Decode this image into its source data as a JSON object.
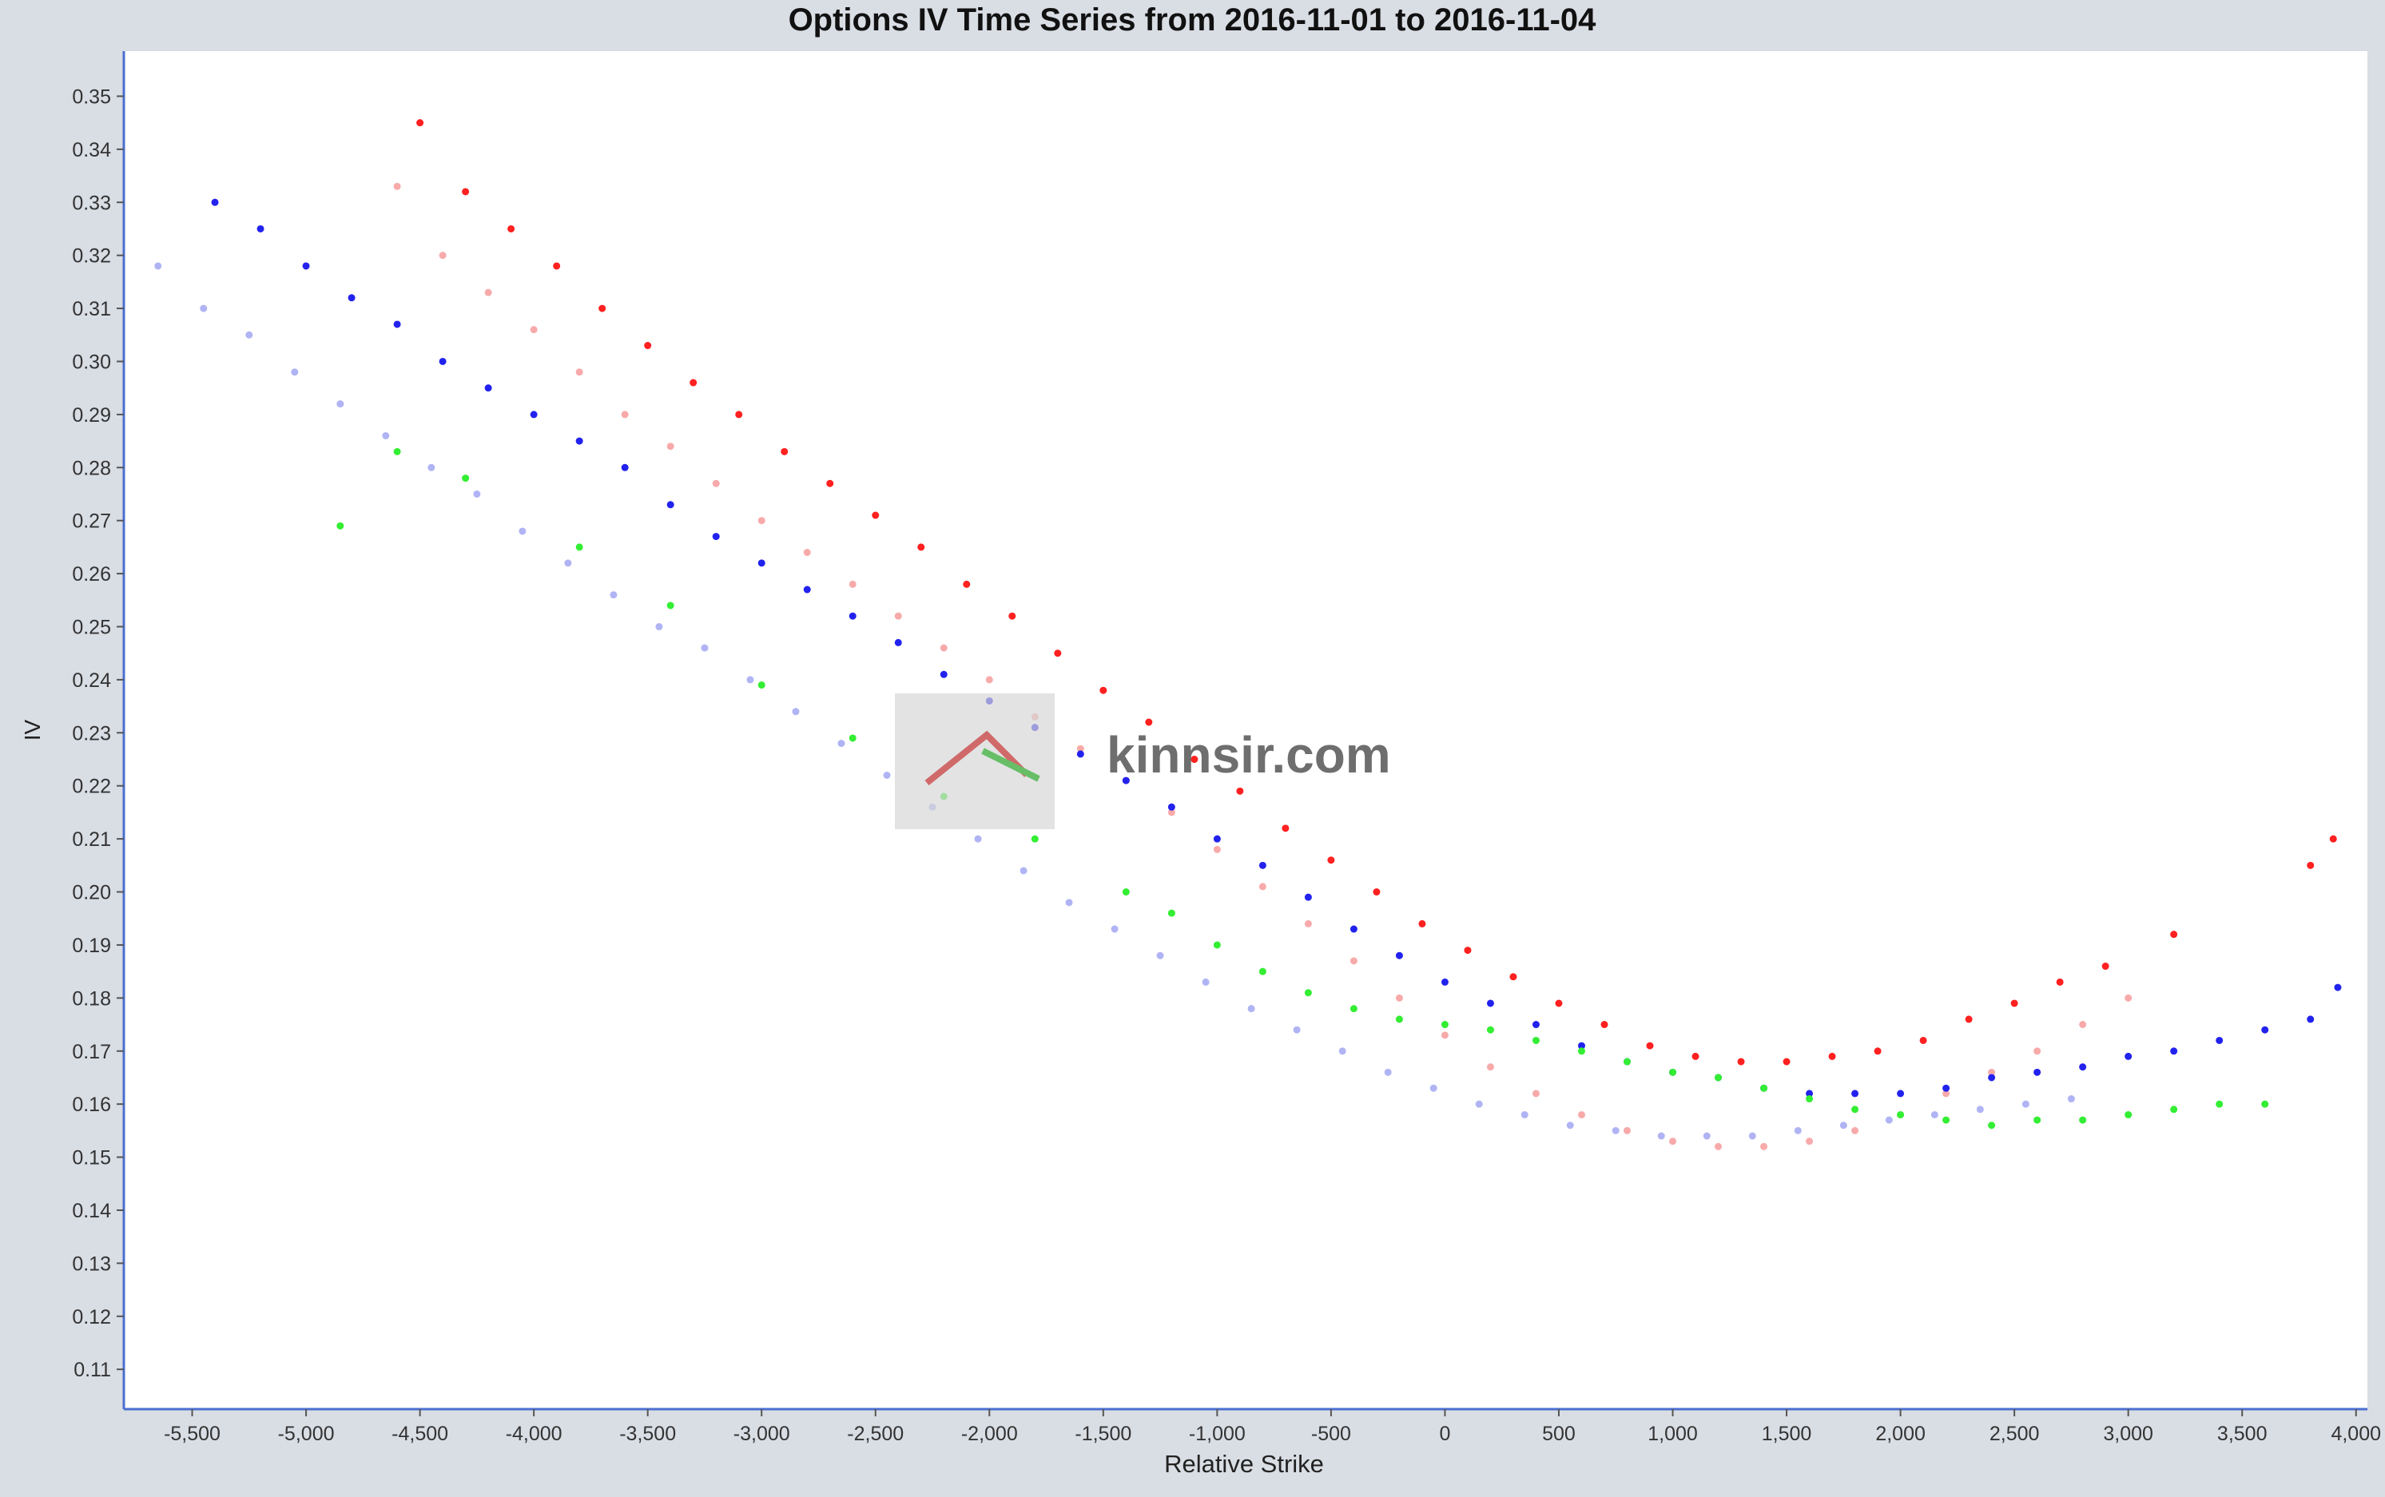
{
  "chart_data": {
    "type": "scatter",
    "title": "Options IV Time Series from 2016-11-01 to 2016-11-04",
    "xlabel": "Relative Strike",
    "ylabel": "IV",
    "xlim": [
      -5800,
      4050
    ],
    "ylim": [
      0.1025,
      0.3585
    ],
    "x_ticks": [
      -5500,
      -5000,
      -4500,
      -4000,
      -3500,
      -3000,
      -2500,
      -2000,
      -1500,
      -1000,
      -500,
      0,
      500,
      1000,
      1500,
      2000,
      2500,
      3000,
      3500,
      4000
    ],
    "x_tick_labels": [
      "-5,500",
      "-5,000",
      "-4,500",
      "-4,000",
      "-3,500",
      "-3,000",
      "-2,500",
      "-2,000",
      "-1,500",
      "-1,000",
      "-500",
      "0",
      "500",
      "1,000",
      "1,500",
      "2,000",
      "2,500",
      "3,000",
      "3,500",
      "4,000"
    ],
    "y_ticks": [
      0.11,
      0.12,
      0.13,
      0.14,
      0.15,
      0.16,
      0.17,
      0.18,
      0.19,
      0.2,
      0.21,
      0.22,
      0.23,
      0.24,
      0.25,
      0.26,
      0.27,
      0.28,
      0.29,
      0.3,
      0.31,
      0.32,
      0.33,
      0.34,
      0.35
    ],
    "y_tick_labels": [
      "0.11",
      "0.12",
      "0.13",
      "0.14",
      "0.15",
      "0.16",
      "0.17",
      "0.18",
      "0.19",
      "0.20",
      "0.21",
      "0.22",
      "0.23",
      "0.24",
      "0.25",
      "0.26",
      "0.27",
      "0.28",
      "0.29",
      "0.30",
      "0.31",
      "0.32",
      "0.33",
      "0.34",
      "0.35"
    ],
    "grid": false,
    "legend": "none",
    "watermark": "kinnsir.com",
    "series": [
      {
        "color": "#ff2020",
        "points": [
          [
            -4500,
            0.345
          ],
          [
            -4300,
            0.332
          ],
          [
            -4100,
            0.325
          ],
          [
            -3900,
            0.318
          ],
          [
            -3700,
            0.31
          ],
          [
            -3500,
            0.303
          ],
          [
            -3300,
            0.296
          ],
          [
            -3100,
            0.29
          ],
          [
            -2900,
            0.283
          ],
          [
            -2700,
            0.277
          ],
          [
            -2500,
            0.271
          ],
          [
            -2300,
            0.265
          ],
          [
            -2100,
            0.258
          ],
          [
            -1900,
            0.252
          ],
          [
            -1700,
            0.245
          ],
          [
            -1500,
            0.238
          ],
          [
            -1300,
            0.232
          ],
          [
            -1100,
            0.225
          ],
          [
            -900,
            0.219
          ],
          [
            -700,
            0.212
          ],
          [
            -500,
            0.206
          ],
          [
            -300,
            0.2
          ],
          [
            -100,
            0.194
          ],
          [
            100,
            0.189
          ],
          [
            300,
            0.184
          ],
          [
            500,
            0.179
          ],
          [
            700,
            0.175
          ],
          [
            900,
            0.171
          ],
          [
            1100,
            0.169
          ],
          [
            1300,
            0.168
          ],
          [
            1500,
            0.168
          ],
          [
            1700,
            0.169
          ],
          [
            1900,
            0.17
          ],
          [
            2100,
            0.172
          ],
          [
            2300,
            0.176
          ],
          [
            2500,
            0.179
          ],
          [
            2700,
            0.183
          ],
          [
            2900,
            0.186
          ],
          [
            3200,
            0.192
          ],
          [
            3800,
            0.205
          ],
          [
            3900,
            0.21
          ]
        ]
      },
      {
        "color": "#f8aaaa",
        "points": [
          [
            -4600,
            0.333
          ],
          [
            -4400,
            0.32
          ],
          [
            -4200,
            0.313
          ],
          [
            -4000,
            0.306
          ],
          [
            -3800,
            0.298
          ],
          [
            -3600,
            0.29
          ],
          [
            -3400,
            0.284
          ],
          [
            -3200,
            0.277
          ],
          [
            -3000,
            0.27
          ],
          [
            -2800,
            0.264
          ],
          [
            -2600,
            0.258
          ],
          [
            -2400,
            0.252
          ],
          [
            -2200,
            0.246
          ],
          [
            -2000,
            0.24
          ],
          [
            -1800,
            0.233
          ],
          [
            -1600,
            0.227
          ],
          [
            -1400,
            0.221
          ],
          [
            -1200,
            0.215
          ],
          [
            -1000,
            0.208
          ],
          [
            -800,
            0.201
          ],
          [
            -600,
            0.194
          ],
          [
            -400,
            0.187
          ],
          [
            -200,
            0.18
          ],
          [
            0,
            0.173
          ],
          [
            200,
            0.167
          ],
          [
            400,
            0.162
          ],
          [
            600,
            0.158
          ],
          [
            800,
            0.155
          ],
          [
            1000,
            0.153
          ],
          [
            1200,
            0.152
          ],
          [
            1400,
            0.152
          ],
          [
            1600,
            0.153
          ],
          [
            1800,
            0.155
          ],
          [
            2000,
            0.158
          ],
          [
            2200,
            0.162
          ],
          [
            2400,
            0.166
          ],
          [
            2600,
            0.17
          ],
          [
            2800,
            0.175
          ],
          [
            3000,
            0.18
          ]
        ]
      },
      {
        "color": "#2222ee",
        "points": [
          [
            -5400,
            0.33
          ],
          [
            -5200,
            0.325
          ],
          [
            -5000,
            0.318
          ],
          [
            -4800,
            0.312
          ],
          [
            -4600,
            0.307
          ],
          [
            -4400,
            0.3
          ],
          [
            -4200,
            0.295
          ],
          [
            -4000,
            0.29
          ],
          [
            -3800,
            0.285
          ],
          [
            -3600,
            0.28
          ],
          [
            -3400,
            0.273
          ],
          [
            -3200,
            0.267
          ],
          [
            -3000,
            0.262
          ],
          [
            -2800,
            0.257
          ],
          [
            -2600,
            0.252
          ],
          [
            -2400,
            0.247
          ],
          [
            -2200,
            0.241
          ],
          [
            -2000,
            0.236
          ],
          [
            -1800,
            0.231
          ],
          [
            -1600,
            0.226
          ],
          [
            -1400,
            0.221
          ],
          [
            -1200,
            0.216
          ],
          [
            -1000,
            0.21
          ],
          [
            -800,
            0.205
          ],
          [
            -600,
            0.199
          ],
          [
            -400,
            0.193
          ],
          [
            -200,
            0.188
          ],
          [
            0,
            0.183
          ],
          [
            200,
            0.179
          ],
          [
            400,
            0.175
          ],
          [
            600,
            0.171
          ],
          [
            800,
            0.168
          ],
          [
            1000,
            0.166
          ],
          [
            1200,
            0.165
          ],
          [
            1400,
            0.163
          ],
          [
            1600,
            0.162
          ],
          [
            1800,
            0.162
          ],
          [
            2000,
            0.162
          ],
          [
            2200,
            0.163
          ],
          [
            2400,
            0.165
          ],
          [
            2600,
            0.166
          ],
          [
            2800,
            0.167
          ],
          [
            3000,
            0.169
          ],
          [
            3200,
            0.17
          ],
          [
            3400,
            0.172
          ],
          [
            3600,
            0.174
          ],
          [
            3800,
            0.176
          ],
          [
            3920,
            0.182
          ]
        ]
      },
      {
        "color": "#b0b4f4",
        "points": [
          [
            -5650,
            0.318
          ],
          [
            -5450,
            0.31
          ],
          [
            -5250,
            0.305
          ],
          [
            -5050,
            0.298
          ],
          [
            -4850,
            0.292
          ],
          [
            -4650,
            0.286
          ],
          [
            -4450,
            0.28
          ],
          [
            -4250,
            0.275
          ],
          [
            -4050,
            0.268
          ],
          [
            -3850,
            0.262
          ],
          [
            -3650,
            0.256
          ],
          [
            -3450,
            0.25
          ],
          [
            -3250,
            0.246
          ],
          [
            -3050,
            0.24
          ],
          [
            -2850,
            0.234
          ],
          [
            -2650,
            0.228
          ],
          [
            -2450,
            0.222
          ],
          [
            -2250,
            0.216
          ],
          [
            -2050,
            0.21
          ],
          [
            -1850,
            0.204
          ],
          [
            -1650,
            0.198
          ],
          [
            -1450,
            0.193
          ],
          [
            -1250,
            0.188
          ],
          [
            -1050,
            0.183
          ],
          [
            -850,
            0.178
          ],
          [
            -650,
            0.174
          ],
          [
            -450,
            0.17
          ],
          [
            -250,
            0.166
          ],
          [
            -50,
            0.163
          ],
          [
            150,
            0.16
          ],
          [
            350,
            0.158
          ],
          [
            550,
            0.156
          ],
          [
            750,
            0.155
          ],
          [
            950,
            0.154
          ],
          [
            1150,
            0.154
          ],
          [
            1350,
            0.154
          ],
          [
            1550,
            0.155
          ],
          [
            1750,
            0.156
          ],
          [
            1950,
            0.157
          ],
          [
            2150,
            0.158
          ],
          [
            2350,
            0.159
          ],
          [
            2550,
            0.16
          ],
          [
            2750,
            0.161
          ]
        ]
      },
      {
        "color": "#33ee33",
        "points": [
          [
            -4850,
            0.269
          ],
          [
            -4600,
            0.283
          ],
          [
            -4300,
            0.278
          ],
          [
            -3800,
            0.265
          ],
          [
            -3400,
            0.254
          ],
          [
            -3000,
            0.239
          ],
          [
            -2600,
            0.229
          ],
          [
            -2200,
            0.218
          ],
          [
            -1800,
            0.21
          ],
          [
            -1400,
            0.2
          ],
          [
            -1200,
            0.196
          ],
          [
            -1000,
            0.19
          ],
          [
            -800,
            0.185
          ],
          [
            -600,
            0.181
          ],
          [
            -400,
            0.178
          ],
          [
            -200,
            0.176
          ],
          [
            0,
            0.175
          ],
          [
            200,
            0.174
          ],
          [
            400,
            0.172
          ],
          [
            600,
            0.17
          ],
          [
            800,
            0.168
          ],
          [
            1000,
            0.166
          ],
          [
            1200,
            0.165
          ],
          [
            1400,
            0.163
          ],
          [
            1600,
            0.161
          ],
          [
            1800,
            0.159
          ],
          [
            2000,
            0.158
          ],
          [
            2200,
            0.157
          ],
          [
            2400,
            0.156
          ],
          [
            2600,
            0.157
          ],
          [
            2800,
            0.157
          ],
          [
            3000,
            0.158
          ],
          [
            3200,
            0.159
          ],
          [
            3400,
            0.16
          ],
          [
            3600,
            0.16
          ]
        ]
      }
    ]
  }
}
